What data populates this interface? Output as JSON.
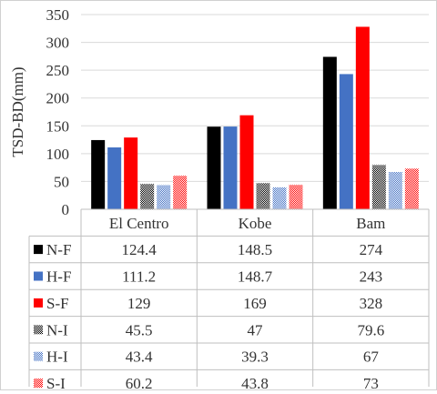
{
  "chart_data": {
    "type": "bar",
    "title": "",
    "xlabel": "",
    "ylabel": "TSD-BD(mm)",
    "ylim": [
      0,
      350
    ],
    "yticks": [
      0,
      50,
      100,
      150,
      200,
      250,
      300,
      350
    ],
    "grid": true,
    "legend_placement": "data-table",
    "categories": [
      "El Centro",
      "Kobe",
      "Bam"
    ],
    "series": [
      {
        "name": "N-F",
        "values": [
          124.4,
          148.5,
          274
        ],
        "color": "#000000",
        "pattern": "solid"
      },
      {
        "name": "H-F",
        "values": [
          111.2,
          148.7,
          243
        ],
        "color": "#4472C4",
        "pattern": "solid"
      },
      {
        "name": "S-F",
        "values": [
          129,
          169,
          328
        ],
        "color": "#FF0000",
        "pattern": "solid"
      },
      {
        "name": "N-I",
        "values": [
          45.5,
          47,
          79.6
        ],
        "color": "#000000",
        "pattern": "checker"
      },
      {
        "name": "H-I",
        "values": [
          43.4,
          39.3,
          67
        ],
        "color": "#4472C4",
        "pattern": "checker"
      },
      {
        "name": "S-I",
        "values": [
          60.2,
          43.8,
          73
        ],
        "color": "#FF0000",
        "pattern": "checker"
      }
    ],
    "table_values": [
      [
        "124.4",
        "148.5",
        "274"
      ],
      [
        "111.2",
        "148.7",
        "243"
      ],
      [
        "129",
        "169",
        "328"
      ],
      [
        "45.5",
        "47",
        "79.6"
      ],
      [
        "43.4",
        "39.3",
        "67"
      ],
      [
        "60.2",
        "43.8",
        "73"
      ]
    ]
  }
}
